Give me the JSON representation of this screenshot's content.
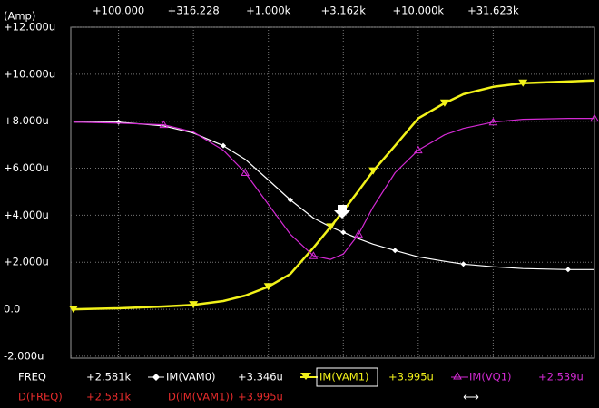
{
  "chart_data": {
    "type": "line",
    "y_unit": "(Amp)",
    "x_log": true,
    "grid": true,
    "xlim": [
      48,
      150000
    ],
    "ylim": [
      -2.08,
      12.0
    ],
    "xticks": [
      {
        "value": 100,
        "label": "+100.000"
      },
      {
        "value": 316.228,
        "label": "+316.228"
      },
      {
        "value": 1000,
        "label": "+1.000k"
      },
      {
        "value": 3162,
        "label": "+3.162k"
      },
      {
        "value": 10000,
        "label": "+10.000k"
      },
      {
        "value": 31623,
        "label": "+31.623k"
      }
    ],
    "yticks": [
      {
        "value": 12,
        "label": "+12.000u"
      },
      {
        "value": 10,
        "label": "+10.000u"
      },
      {
        "value": 8,
        "label": "+8.000u"
      },
      {
        "value": 6,
        "label": "+6.000u"
      },
      {
        "value": 4,
        "label": "+4.000u"
      },
      {
        "value": 2,
        "label": "+2.000u"
      },
      {
        "value": 0,
        "label": "0.0"
      },
      {
        "value": -2,
        "label": "-2.000u"
      }
    ],
    "x": [
      50,
      100,
      200,
      316,
      500,
      700,
      1000,
      1400,
      2000,
      2600,
      3162,
      4000,
      5000,
      7000,
      10000,
      15000,
      20000,
      31623,
      50000,
      100000,
      150000
    ],
    "series": [
      {
        "name": "IM(VAM0)",
        "color": "#ffffff",
        "marker": "diamond",
        "values": [
          7.96,
          7.96,
          7.8,
          7.5,
          6.96,
          6.38,
          5.5,
          4.65,
          3.88,
          3.5,
          3.27,
          3.0,
          2.77,
          2.5,
          2.23,
          2.04,
          1.92,
          1.81,
          1.73,
          1.69,
          1.69
        ]
      },
      {
        "name": "IM(VAM1)",
        "color": "#f2f21a",
        "marker": "triangle-down",
        "values": [
          0.0,
          0.04,
          0.12,
          0.19,
          0.35,
          0.58,
          0.96,
          1.5,
          2.62,
          3.5,
          4.19,
          5.04,
          5.88,
          6.96,
          8.12,
          8.77,
          9.15,
          9.46,
          9.62,
          9.69,
          9.73
        ]
      },
      {
        "name": "IM(VQ1)",
        "color": "#d42ad4",
        "marker": "triangle-open",
        "values": [
          7.96,
          7.92,
          7.85,
          7.54,
          6.77,
          5.81,
          4.46,
          3.19,
          2.27,
          2.12,
          2.35,
          3.19,
          4.35,
          5.81,
          6.77,
          7.42,
          7.69,
          7.96,
          8.08,
          8.12,
          8.12
        ]
      }
    ]
  },
  "status_bar": {
    "row1": {
      "x_name": "FREQ",
      "x_value": "+2.581k",
      "s0_value": "+3.346u",
      "s1_value": "+3.995u",
      "s2_value": "+2.539u"
    },
    "row2": {
      "x_name": "D(FREQ)",
      "x_value": "+2.581k",
      "d_name": "D(IM(VAM1))",
      "d_value": "+3.995u"
    }
  }
}
